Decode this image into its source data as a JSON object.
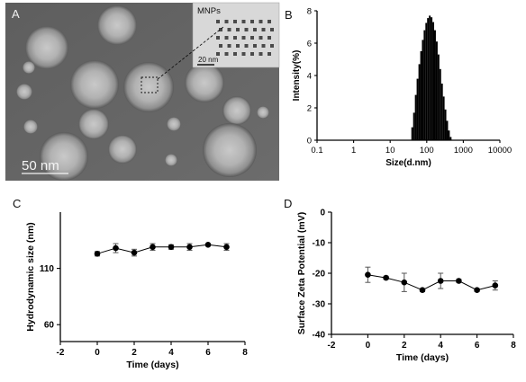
{
  "panels": {
    "a": "A",
    "b": "B",
    "c": "C",
    "d": "D"
  },
  "tem": {
    "scale_label": "50 nm",
    "inset_title": "MNPs",
    "inset_scale_label": "20 nm"
  },
  "chart_data": [
    {
      "id": "B",
      "type": "bar",
      "xlabel": "Size(d.nm)",
      "ylabel": "Intensity(%)",
      "xscale": "log",
      "xlim": [
        0.1,
        10000
      ],
      "ylim": [
        0,
        8
      ],
      "xticks": [
        "0.1",
        "1",
        "10",
        "100",
        "1000",
        "10000"
      ],
      "yticks": [
        "0",
        "2",
        "4",
        "6",
        "8"
      ],
      "x": [
        36,
        40,
        45,
        50,
        56,
        63,
        70,
        78,
        87,
        97,
        108,
        121,
        135,
        151,
        168,
        188,
        210,
        234,
        261,
        291,
        325,
        362,
        404,
        451,
        503
      ],
      "values": [
        0.0,
        0.8,
        1.7,
        2.8,
        3.8,
        4.7,
        5.5,
        6.2,
        6.8,
        7.25,
        7.55,
        7.7,
        7.6,
        7.3,
        6.8,
        6.1,
        5.3,
        4.4,
        3.5,
        2.7,
        1.9,
        1.2,
        0.6,
        0.2,
        0.0
      ],
      "grid": false
    },
    {
      "id": "C",
      "type": "line",
      "xlabel": "Time (days)",
      "ylabel": "Hydrodynamic size (nm)",
      "xlim": [
        -2,
        8
      ],
      "ylim": [
        45,
        160
      ],
      "xticks": [
        "-2",
        "0",
        "2",
        "4",
        "6",
        "8"
      ],
      "yticks": [
        "60",
        "110"
      ],
      "x": [
        0,
        1,
        2,
        3,
        4,
        5,
        6,
        7
      ],
      "values": [
        123,
        128,
        124,
        129,
        129,
        129,
        131,
        129
      ],
      "errors": [
        2,
        4,
        3,
        3,
        2,
        3,
        1,
        3
      ],
      "grid": false
    },
    {
      "id": "D",
      "type": "line",
      "xlabel": "Time (days)",
      "ylabel": "Surface Zeta Potential (mV)",
      "xlim": [
        -2,
        8
      ],
      "ylim": [
        -40,
        0
      ],
      "xticks": [
        "-2",
        "0",
        "2",
        "4",
        "6",
        "8"
      ],
      "yticks": [
        "0",
        "-10",
        "-20",
        "-30",
        "-40"
      ],
      "x": [
        0,
        1,
        2,
        3,
        4,
        5,
        6,
        7
      ],
      "values": [
        -20.5,
        -21.5,
        -23,
        -25.5,
        -22.5,
        -22.5,
        -25.5,
        -24
      ],
      "errors": [
        2.5,
        0.5,
        3,
        0.5,
        2.5,
        0.5,
        0.5,
        1.5
      ],
      "grid": false
    }
  ]
}
